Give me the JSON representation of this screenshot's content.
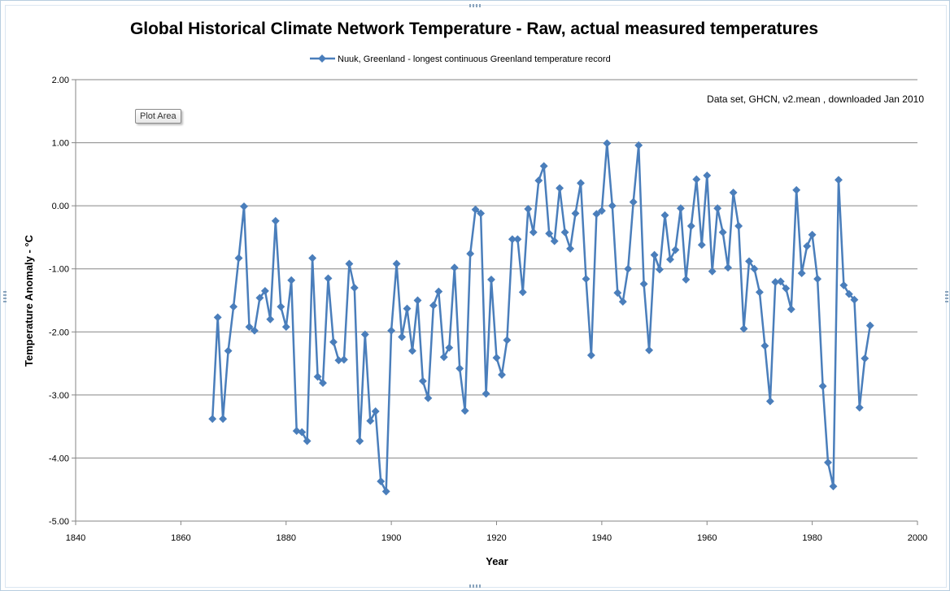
{
  "chart_data": {
    "type": "line",
    "title": "Global Historical Climate Network Temperature - Raw, actual measured temperatures",
    "xlabel": "Year",
    "ylabel": "Temperature Anomaly - °C",
    "xlim": [
      1840,
      2000
    ],
    "ylim": [
      -5,
      2
    ],
    "x_ticks": [
      "1840",
      "1860",
      "1880",
      "1900",
      "1920",
      "1940",
      "1960",
      "1980",
      "2000"
    ],
    "y_ticks": [
      "2.00",
      "1.00",
      "0.00",
      "-1.00",
      "-2.00",
      "-3.00",
      "-4.00",
      "-5.00"
    ],
    "grid": "horizontal",
    "legend_position": "top",
    "annotation": "Data set, GHCN, v2.mean , downloaded Jan 2010",
    "series": [
      {
        "name": "Nuuk, Greenland - longest continuous Greenland temperature record",
        "color": "#4a7ebb",
        "x": [
          1866,
          1867,
          1868,
          1869,
          1870,
          1871,
          1872,
          1873,
          1874,
          1875,
          1876,
          1877,
          1878,
          1879,
          1880,
          1881,
          1882,
          1883,
          1884,
          1885,
          1886,
          1887,
          1888,
          1889,
          1890,
          1891,
          1892,
          1893,
          1894,
          1895,
          1896,
          1897,
          1898,
          1899,
          1900,
          1901,
          1902,
          1903,
          1904,
          1905,
          1906,
          1907,
          1908,
          1909,
          1910,
          1911,
          1912,
          1913,
          1914,
          1915,
          1916,
          1917,
          1918,
          1919,
          1920,
          1921,
          1922,
          1923,
          1924,
          1925,
          1926,
          1927,
          1928,
          1929,
          1930,
          1931,
          1932,
          1933,
          1934,
          1935,
          1936,
          1937,
          1938,
          1939,
          1940,
          1941,
          1942,
          1943,
          1944,
          1945,
          1946,
          1947,
          1948,
          1949,
          1950,
          1951,
          1952,
          1953,
          1954,
          1955,
          1956,
          1957,
          1958,
          1959,
          1960,
          1961,
          1962,
          1963,
          1964,
          1965,
          1966,
          1967,
          1968,
          1969,
          1970,
          1971,
          1972,
          1973,
          1974,
          1975,
          1976,
          1977,
          1978,
          1979,
          1980,
          1981,
          1982,
          1983,
          1984,
          1985,
          1986,
          1987,
          1988,
          1989,
          1990,
          1991
        ],
        "values": [
          -3.38,
          -1.77,
          -3.38,
          -2.3,
          -1.6,
          -0.83,
          -0.01,
          -1.92,
          -1.98,
          -1.46,
          -1.35,
          -1.8,
          -0.24,
          -1.6,
          -1.92,
          -1.18,
          -3.57,
          -3.59,
          -3.73,
          -0.83,
          -2.71,
          -2.81,
          -1.15,
          -2.16,
          -2.45,
          -2.44,
          -0.92,
          -1.3,
          -3.73,
          -2.04,
          -3.41,
          -3.26,
          -4.37,
          -4.53,
          -1.98,
          -0.92,
          -2.08,
          -1.63,
          -2.3,
          -1.5,
          -2.78,
          -3.05,
          -1.58,
          -1.36,
          -2.4,
          -2.25,
          -0.98,
          -2.58,
          -3.25,
          -0.76,
          -0.06,
          -0.12,
          -2.98,
          -1.17,
          -2.41,
          -2.68,
          -2.13,
          -0.53,
          -0.53,
          -1.37,
          -0.05,
          -0.42,
          0.4,
          0.63,
          -0.44,
          -0.56,
          0.28,
          -0.42,
          -0.68,
          -0.12,
          0.36,
          -1.16,
          -2.37,
          -0.13,
          -0.08,
          0.99,
          0.0,
          -1.38,
          -1.52,
          -1.0,
          0.06,
          0.96,
          -1.24,
          -2.29,
          -0.78,
          -1.01,
          -0.15,
          -0.85,
          -0.7,
          -0.04,
          -1.17,
          -0.32,
          0.42,
          -0.62,
          0.48,
          -1.04,
          -0.04,
          -0.42,
          -0.98,
          0.21,
          -0.32,
          -1.95,
          -0.88,
          -1.0,
          -1.37,
          -2.22,
          -3.1,
          -1.21,
          -1.2,
          -1.31,
          -1.64,
          0.25,
          -1.07,
          -0.64,
          -0.46,
          -1.16,
          -2.86,
          -4.07,
          -4.45,
          0.41,
          -1.26,
          -1.4,
          -1.49,
          -3.2,
          -2.42,
          -1.9
        ]
      }
    ]
  },
  "tooltip": {
    "label": "Plot Area"
  }
}
